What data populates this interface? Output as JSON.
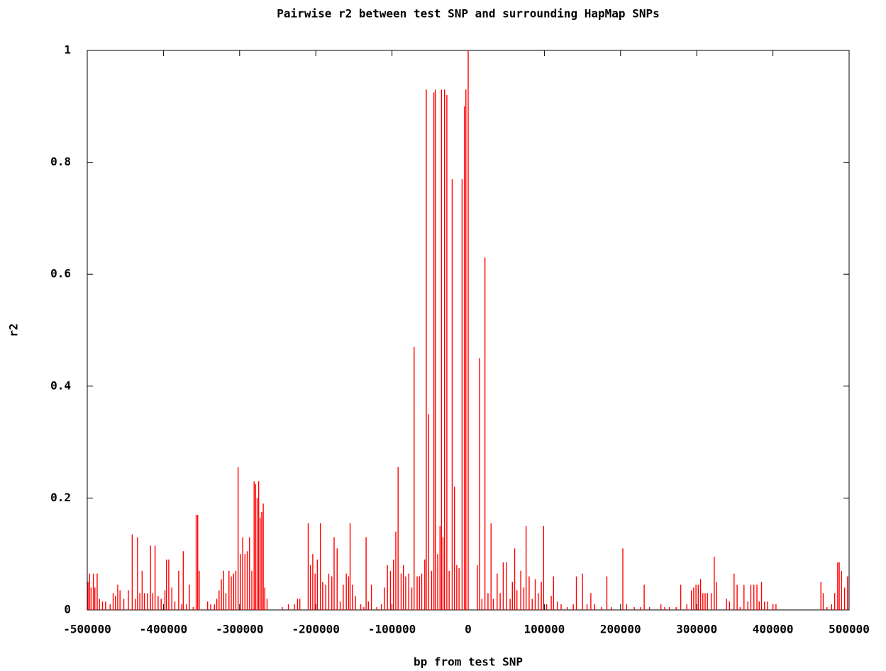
{
  "chart_data": {
    "type": "impulse",
    "title": "Pairwise r2 between test SNP and surrounding HapMap SNPs",
    "x_label": "bp from test SNP",
    "y_label": "r2",
    "color": "#ff0000",
    "xlim": [
      -500000,
      500000
    ],
    "xticks": [
      -500000,
      -400000,
      -300000,
      -200000,
      -100000,
      0,
      100000,
      200000,
      300000,
      400000,
      500000
    ],
    "ylim": [
      0,
      1
    ],
    "yticks": [
      0,
      0.2,
      0.4,
      0.6,
      0.8,
      1
    ],
    "x": [
      -499000,
      -497000,
      -495000,
      -492000,
      -490000,
      -487000,
      -484000,
      -480000,
      -476000,
      -470000,
      -466000,
      -463000,
      -460000,
      -457000,
      -452000,
      -446000,
      -441000,
      -437000,
      -434000,
      -431000,
      -428000,
      -425000,
      -421000,
      -417000,
      -414000,
      -411000,
      -407000,
      -403000,
      -398000,
      -396000,
      -393000,
      -389000,
      -385000,
      -380000,
      -376000,
      -374000,
      -370000,
      -366000,
      -361000,
      -357000,
      -355000,
      -353000,
      -342000,
      -338000,
      -333000,
      -330000,
      -327000,
      -324000,
      -321000,
      -318000,
      -314000,
      -311000,
      -308000,
      -305000,
      -302000,
      -299000,
      -296000,
      -293000,
      -290000,
      -287000,
      -284000,
      -281000,
      -279000,
      -277000,
      -275000,
      -273000,
      -271000,
      -269000,
      -267000,
      -264000,
      -244000,
      -236000,
      -228000,
      -224000,
      -221000,
      -210000,
      -207000,
      -204000,
      -201000,
      -198000,
      -194000,
      -191000,
      -187000,
      -183000,
      -179000,
      -176000,
      -172000,
      -168000,
      -164000,
      -160000,
      -157000,
      -155000,
      -152000,
      -148000,
      -141000,
      -137000,
      -134000,
      -131000,
      -127000,
      -120000,
      -114000,
      -110000,
      -106000,
      -102000,
      -98000,
      -95000,
      -92000,
      -88000,
      -85000,
      -82000,
      -78000,
      -74000,
      -71000,
      -67000,
      -64000,
      -61000,
      -57000,
      -55000,
      -52000,
      -48000,
      -45000,
      -43000,
      -40000,
      -37000,
      -35000,
      -33000,
      -31000,
      -28000,
      -25000,
      -21000,
      -18000,
      -15000,
      -12000,
      -8000,
      -5000,
      -3000,
      0,
      12000,
      15000,
      18000,
      22000,
      26000,
      30000,
      33000,
      38000,
      42000,
      46000,
      50000,
      55000,
      58000,
      61000,
      64000,
      69000,
      73000,
      76000,
      80000,
      84000,
      88000,
      92000,
      96000,
      99000,
      103000,
      109000,
      112000,
      117000,
      122000,
      130000,
      138000,
      142000,
      150000,
      156000,
      161000,
      166000,
      175000,
      182000,
      188000,
      203000,
      208000,
      218000,
      226000,
      231000,
      238000,
      253000,
      258000,
      264000,
      273000,
      279000,
      287000,
      293000,
      296000,
      299000,
      302000,
      305000,
      308000,
      311000,
      314000,
      319000,
      323000,
      326000,
      339000,
      343000,
      349000,
      353000,
      357000,
      362000,
      367000,
      371000,
      375000,
      379000,
      382000,
      385000,
      389000,
      393000,
      400000,
      404000,
      463000,
      466000,
      471000,
      477000,
      481000,
      485000,
      487000,
      490000,
      494000,
      498000
    ],
    "values": [
      0.05,
      0.065,
      0.04,
      0.065,
      0.04,
      0.065,
      0.02,
      0.015,
      0.015,
      0.01,
      0.03,
      0.025,
      0.045,
      0.035,
      0.02,
      0.035,
      0.135,
      0.02,
      0.13,
      0.03,
      0.07,
      0.03,
      0.03,
      0.115,
      0.03,
      0.115,
      0.025,
      0.02,
      0.035,
      0.09,
      0.09,
      0.04,
      0.015,
      0.07,
      0.01,
      0.105,
      0.01,
      0.045,
      0.005,
      0.17,
      0.17,
      0.07,
      0.015,
      0.01,
      0.01,
      0.02,
      0.035,
      0.055,
      0.07,
      0.03,
      0.07,
      0.06,
      0.065,
      0.07,
      0.255,
      0.1,
      0.13,
      0.1,
      0.105,
      0.13,
      0.07,
      0.23,
      0.225,
      0.2,
      0.23,
      0.165,
      0.175,
      0.19,
      0.04,
      0.02,
      0.005,
      0.01,
      0.01,
      0.02,
      0.02,
      0.155,
      0.08,
      0.1,
      0.065,
      0.09,
      0.155,
      0.05,
      0.045,
      0.065,
      0.06,
      0.13,
      0.11,
      0.015,
      0.045,
      0.065,
      0.06,
      0.155,
      0.045,
      0.025,
      0.01,
      0.005,
      0.13,
      0.015,
      0.045,
      0.005,
      0.01,
      0.04,
      0.08,
      0.07,
      0.09,
      0.14,
      0.255,
      0.065,
      0.08,
      0.06,
      0.065,
      0.04,
      0.47,
      0.06,
      0.06,
      0.065,
      0.09,
      0.93,
      0.35,
      0.07,
      0.925,
      0.93,
      0.1,
      0.15,
      0.93,
      0.13,
      0.93,
      0.92,
      0.07,
      0.77,
      0.22,
      0.08,
      0.075,
      0.77,
      0.9,
      0.93,
      1,
      0.08,
      0.45,
      0.02,
      0.63,
      0.03,
      0.155,
      0.02,
      0.065,
      0.03,
      0.085,
      0.085,
      0.02,
      0.05,
      0.11,
      0.035,
      0.07,
      0.04,
      0.15,
      0.06,
      0.02,
      0.055,
      0.03,
      0.05,
      0.15,
      0.01,
      0.025,
      0.06,
      0.015,
      0.01,
      0.005,
      0.01,
      0.06,
      0.065,
      0.01,
      0.03,
      0.01,
      0.005,
      0.06,
      0.005,
      0.11,
      0.01,
      0.005,
      0.005,
      0.045,
      0.005,
      0.01,
      0.005,
      0.005,
      0.005,
      0.045,
      0.01,
      0.035,
      0.04,
      0.045,
      0.045,
      0.055,
      0.03,
      0.03,
      0.03,
      0.03,
      0.095,
      0.05,
      0.02,
      0.015,
      0.065,
      0.045,
      0.005,
      0.045,
      0.015,
      0.045,
      0.045,
      0.045,
      0.015,
      0.05,
      0.015,
      0.015,
      0.01,
      0.01,
      0.05,
      0.03,
      0.005,
      0.01,
      0.03,
      0.085,
      0.085,
      0.07,
      0.04,
      0.06
    ]
  }
}
